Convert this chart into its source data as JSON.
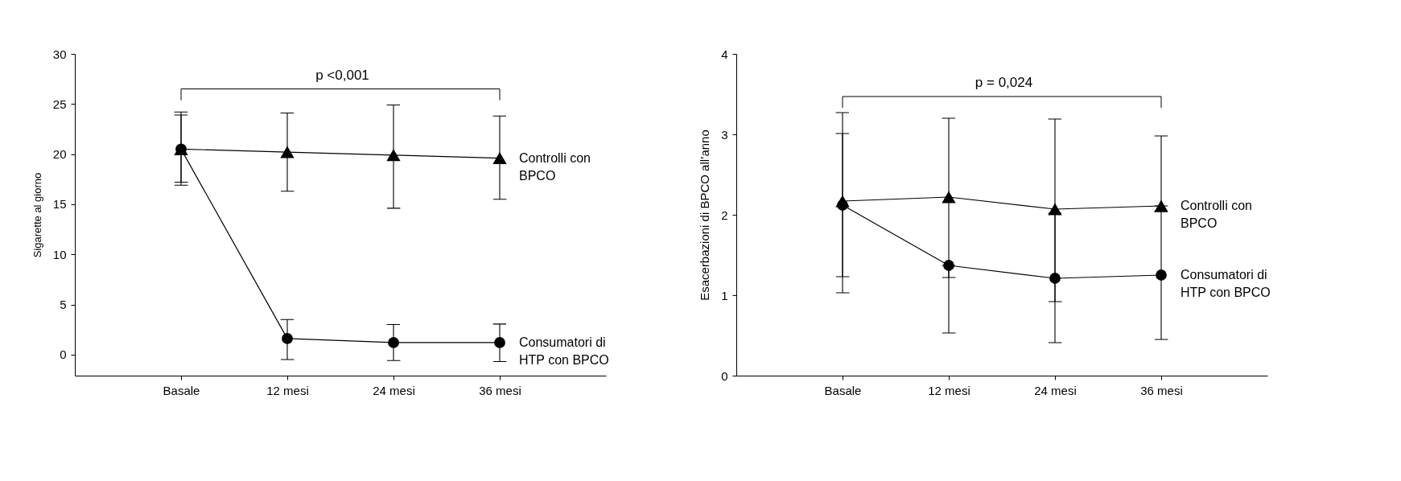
{
  "chart_data": [
    {
      "type": "line",
      "categories": [
        "Basale",
        "12 mesi",
        "24 mesi",
        "36 mesi"
      ],
      "ylabel": "Sigarette al giorno",
      "ylim": [
        -2.1,
        30
      ],
      "yticks": [
        0,
        5,
        10,
        15,
        20,
        25,
        30
      ],
      "annotations": [
        "p <0,001"
      ],
      "series": [
        {
          "name": "Controlli con BPCO",
          "color": "#000000",
          "marker": "triangle",
          "values": [
            20.5,
            20.2,
            19.9,
            19.6
          ],
          "errors": [
            [
              16.9,
              24.2
            ],
            [
              16.3,
              24.1
            ],
            [
              14.6,
              24.9
            ],
            [
              15.5,
              23.8
            ]
          ]
        },
        {
          "name": "Consumatori di HTP con BPCO",
          "color": "#000000",
          "marker": "circle",
          "values": [
            20.5,
            1.6,
            1.2,
            1.2
          ],
          "errors": [
            [
              17.2,
              23.9
            ],
            [
              -0.5,
              3.5
            ],
            [
              -0.6,
              3.0
            ],
            [
              -0.7,
              3.05
            ]
          ]
        }
      ]
    },
    {
      "type": "line",
      "categories": [
        "Basale",
        "12 mesi",
        "24 mesi",
        "36 mesi"
      ],
      "ylabel": "Esacerbazioni di BPCO all’anno",
      "ylim": [
        0,
        4
      ],
      "yticks": [
        0,
        1,
        2,
        3,
        4
      ],
      "annotations": [
        "p = 0,024"
      ],
      "series": [
        {
          "name": "Controlli con BPCO",
          "color": "#000000",
          "marker": "triangle",
          "values": [
            2.17,
            2.22,
            2.07,
            2.11
          ],
          "errors": [
            [
              1.23,
              3.01
            ],
            [
              1.22,
              3.2
            ],
            [
              0.92,
              3.19
            ],
            [
              2.11,
              2.98
            ]
          ]
        },
        {
          "name": "Consumatori di HTP con BPCO",
          "color": "#000000",
          "marker": "circle",
          "values": [
            2.12,
            1.37,
            1.21,
            1.25
          ],
          "errors": [
            [
              1.03,
              3.27
            ],
            [
              0.53,
              1.37
            ],
            [
              0.41,
              2.02
            ],
            [
              0.45,
              2.04
            ]
          ]
        }
      ]
    }
  ]
}
